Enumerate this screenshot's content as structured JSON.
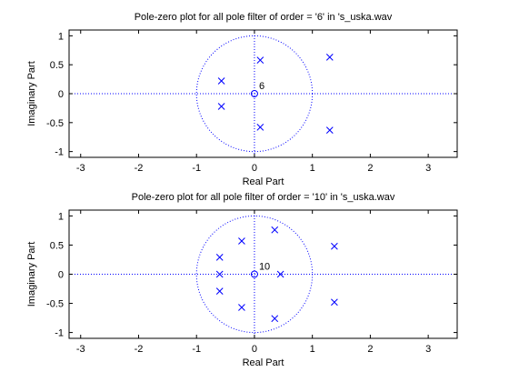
{
  "colors": {
    "marker": "#0000ff",
    "axes": "#000000",
    "background": "#ffffff"
  },
  "chart_data": [
    {
      "type": "scatter",
      "title": "Pole-zero plot for all pole filter of order = '6' in 's_uska.wav",
      "xlabel": "Real Part",
      "ylabel": "Imaginary Part",
      "xlim": [
        -3.2,
        3.5
      ],
      "ylim": [
        -1.1,
        1.1
      ],
      "xticks": [
        -3,
        -2,
        -1,
        0,
        1,
        2,
        3
      ],
      "yticks": [
        -1,
        -0.5,
        0,
        0.5,
        1
      ],
      "xtick_labels": [
        "-3",
        "-2",
        "-1",
        "0",
        "1",
        "2",
        "3"
      ],
      "ytick_labels": [
        "-1",
        "-0.5",
        "0",
        "0.5",
        "1"
      ],
      "unit_circle": true,
      "zeros": [
        {
          "re": 0,
          "im": 0,
          "multiplicity": "6"
        }
      ],
      "poles": [
        {
          "re": 0.1,
          "im": 0.58
        },
        {
          "re": 0.1,
          "im": -0.58
        },
        {
          "re": -0.57,
          "im": 0.22
        },
        {
          "re": -0.57,
          "im": -0.22
        },
        {
          "re": 1.3,
          "im": 0.63
        },
        {
          "re": 1.3,
          "im": -0.63
        }
      ]
    },
    {
      "type": "scatter",
      "title": "Pole-zero plot for all pole filter of order = '10' in 's_uska.wav",
      "xlabel": "Real Part",
      "ylabel": "Imaginary Part",
      "xlim": [
        -3.2,
        3.5
      ],
      "ylim": [
        -1.1,
        1.1
      ],
      "xticks": [
        -3,
        -2,
        -1,
        0,
        1,
        2,
        3
      ],
      "yticks": [
        -1,
        -0.5,
        0,
        0.5,
        1
      ],
      "xtick_labels": [
        "-3",
        "-2",
        "-1",
        "0",
        "1",
        "2",
        "3"
      ],
      "ytick_labels": [
        "-1",
        "-0.5",
        "0",
        "0.5",
        "1"
      ],
      "unit_circle": true,
      "zeros": [
        {
          "re": 0,
          "im": 0,
          "multiplicity": "10"
        }
      ],
      "poles": [
        {
          "re": 0.35,
          "im": 0.76
        },
        {
          "re": 0.35,
          "im": -0.76
        },
        {
          "re": -0.22,
          "im": 0.57
        },
        {
          "re": -0.22,
          "im": -0.57
        },
        {
          "re": -0.6,
          "im": 0.29
        },
        {
          "re": -0.6,
          "im": -0.29
        },
        {
          "re": -0.6,
          "im": 0.0
        },
        {
          "re": 0.45,
          "im": 0.0
        },
        {
          "re": 1.38,
          "im": 0.48
        },
        {
          "re": 1.38,
          "im": -0.48
        }
      ]
    }
  ]
}
